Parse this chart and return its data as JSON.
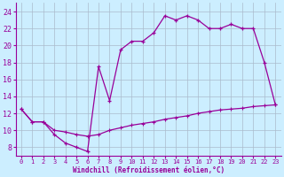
{
  "upper_x": [
    0,
    1,
    2,
    3,
    4,
    5,
    6,
    7,
    8,
    9,
    10,
    11,
    12,
    13,
    14,
    15,
    16,
    17,
    18,
    19,
    20,
    21,
    22,
    23
  ],
  "upper_y": [
    12.5,
    11.0,
    11.0,
    9.5,
    8.5,
    8.0,
    7.5,
    17.5,
    13.5,
    19.5,
    20.5,
    20.5,
    21.5,
    23.5,
    23.0,
    23.5,
    23.0,
    22.0,
    22.0,
    22.5,
    22.0,
    22.0,
    18.0,
    13.0
  ],
  "lower_x": [
    0,
    1,
    2,
    3,
    4,
    5,
    6,
    7,
    8,
    9,
    10,
    11,
    12,
    13,
    14,
    15,
    16,
    17,
    18,
    19,
    20,
    21,
    22,
    23
  ],
  "lower_y": [
    12.5,
    11.0,
    11.0,
    10.0,
    9.8,
    9.5,
    9.3,
    9.5,
    10.0,
    10.3,
    10.6,
    10.8,
    11.0,
    11.3,
    11.5,
    11.7,
    12.0,
    12.2,
    12.4,
    12.5,
    12.6,
    12.8,
    12.9,
    13.0
  ],
  "line_color": "#990099",
  "bg_color": "#cceeff",
  "grid_color": "#aabbcc",
  "xlabel": "Windchill (Refroidissement éolien,°C)",
  "xlim": [
    -0.5,
    23.5
  ],
  "ylim": [
    7,
    25
  ],
  "yticks": [
    8,
    10,
    12,
    14,
    16,
    18,
    20,
    22,
    24
  ],
  "xticks": [
    0,
    1,
    2,
    3,
    4,
    5,
    6,
    7,
    8,
    9,
    10,
    11,
    12,
    13,
    14,
    15,
    16,
    17,
    18,
    19,
    20,
    21,
    22,
    23
  ]
}
